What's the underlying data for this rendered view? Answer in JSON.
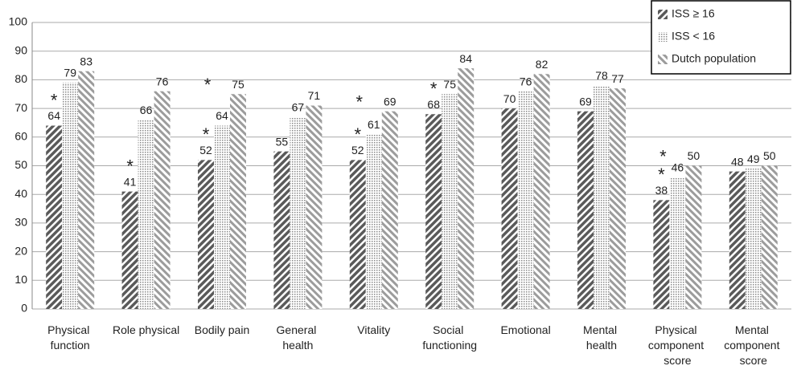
{
  "chart_data": {
    "type": "bar",
    "categories": [
      "Physical\nfunction",
      "Role physical",
      "Bodily pain",
      "General\nhealth",
      "Vitality",
      "Social\nfunctioning",
      "Emotional",
      "Mental\nhealth",
      "Physical\ncomponent\nscore",
      "Mental\ncomponent\nscore"
    ],
    "series": [
      {
        "name": "ISS ≥ 16",
        "color": "#5a5a5a",
        "values": [
          64,
          41,
          52,
          55,
          52,
          68,
          70,
          69,
          38,
          48
        ],
        "markers": [
          "*",
          "*",
          "*",
          null,
          "*",
          "*",
          null,
          null,
          "*",
          null
        ]
      },
      {
        "name": "ISS < 16",
        "color": "#8a8a8a",
        "values": [
          79,
          66,
          64,
          67,
          61,
          75,
          76,
          78,
          46,
          49
        ],
        "markers": [
          null,
          null,
          "*",
          null,
          "*",
          null,
          null,
          null,
          "*",
          null
        ]
      },
      {
        "name": "Dutch population",
        "color": "#9c9c9c",
        "values": [
          83,
          76,
          75,
          71,
          69,
          84,
          82,
          77,
          50,
          50
        ],
        "markers": [
          null,
          null,
          null,
          null,
          null,
          null,
          null,
          null,
          null,
          null
        ]
      }
    ],
    "ylim": [
      0,
      100
    ],
    "yticks": [
      0,
      10,
      20,
      30,
      40,
      50,
      60,
      70,
      80,
      90,
      100
    ],
    "grid": true,
    "legend": "top-right"
  }
}
